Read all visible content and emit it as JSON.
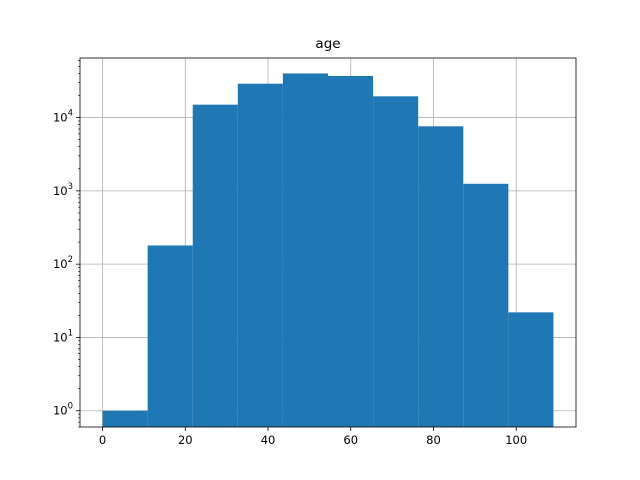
{
  "chart_data": {
    "type": "bar",
    "title": "age",
    "xlabel": "",
    "ylabel": "",
    "y_scale": "log",
    "xlim": [
      -5.45,
      114.45
    ],
    "ylim": [
      0.6,
      65000
    ],
    "grid": true,
    "bar_color": "#1f77b4",
    "bins": [
      {
        "x0": 0.0,
        "x1": 10.9,
        "value": 1
      },
      {
        "x0": 10.9,
        "x1": 21.8,
        "value": 180
      },
      {
        "x0": 21.8,
        "x1": 32.7,
        "value": 15000
      },
      {
        "x0": 32.7,
        "x1": 43.6,
        "value": 29000
      },
      {
        "x0": 43.6,
        "x1": 54.5,
        "value": 40000
      },
      {
        "x0": 54.5,
        "x1": 65.4,
        "value": 37000
      },
      {
        "x0": 65.4,
        "x1": 76.3,
        "value": 19500
      },
      {
        "x0": 76.3,
        "x1": 87.2,
        "value": 7600
      },
      {
        "x0": 87.2,
        "x1": 98.1,
        "value": 1250
      },
      {
        "x0": 98.1,
        "x1": 109.0,
        "value": 22
      }
    ],
    "x_ticks": [
      {
        "value": 0,
        "label": "0"
      },
      {
        "value": 20,
        "label": "20"
      },
      {
        "value": 40,
        "label": "40"
      },
      {
        "value": 60,
        "label": "60"
      },
      {
        "value": 80,
        "label": "80"
      },
      {
        "value": 100,
        "label": "100"
      }
    ],
    "y_ticks": [
      {
        "value": 1,
        "base": "10",
        "exp": "0"
      },
      {
        "value": 10,
        "base": "10",
        "exp": "1"
      },
      {
        "value": 100,
        "base": "10",
        "exp": "2"
      },
      {
        "value": 1000,
        "base": "10",
        "exp": "3"
      },
      {
        "value": 10000,
        "base": "10",
        "exp": "4"
      }
    ]
  }
}
